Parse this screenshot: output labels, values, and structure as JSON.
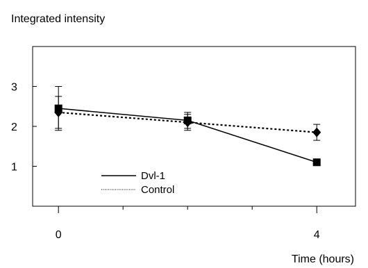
{
  "chart_data": {
    "type": "line",
    "title": "",
    "ylabel": "Integrated intensity",
    "xlabel": "Time (hours)",
    "xlim": [
      -0.4,
      4.6
    ],
    "ylim": [
      0,
      4
    ],
    "x_ticks": [
      0,
      4
    ],
    "y_ticks": [
      1,
      2,
      3
    ],
    "grid": false,
    "legend_position": "bottom-left",
    "series": [
      {
        "name": "Dvl-1",
        "style": "solid",
        "marker": "square",
        "color": "#000000",
        "points": [
          {
            "x": 0,
            "y": 2.45,
            "err": 0.55
          },
          {
            "x": 2,
            "y": 2.15,
            "err": 0.2
          },
          {
            "x": 4,
            "y": 1.1,
            "err": 0
          }
        ]
      },
      {
        "name": "Control",
        "style": "dotted",
        "marker": "diamond",
        "color": "#000000",
        "points": [
          {
            "x": 0,
            "y": 2.35,
            "err": 0.4
          },
          {
            "x": 2,
            "y": 2.1,
            "err": 0.2
          },
          {
            "x": 4,
            "y": 1.85,
            "err": 0.2
          }
        ]
      }
    ]
  }
}
